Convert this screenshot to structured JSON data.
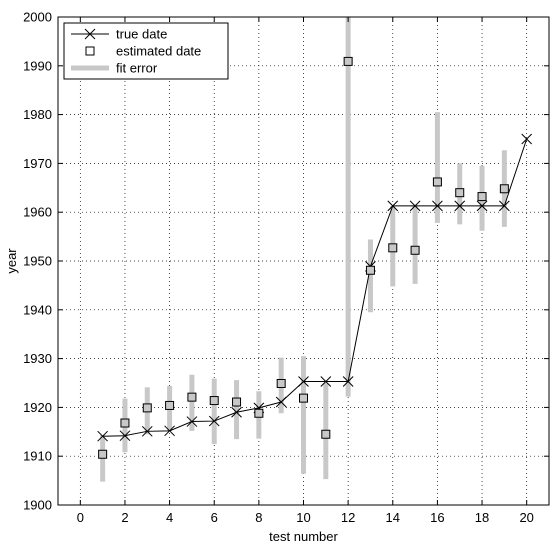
{
  "chart_data": {
    "type": "scatter",
    "xlabel": "test number",
    "ylabel": "year",
    "xlim": [
      -1,
      21
    ],
    "ylim": [
      1900,
      2000
    ],
    "xticks": [
      0,
      2,
      4,
      6,
      8,
      10,
      12,
      14,
      16,
      18,
      20
    ],
    "yticks": [
      1900,
      1910,
      1920,
      1930,
      1940,
      1950,
      1960,
      1970,
      1980,
      1990,
      2000
    ],
    "grid": true,
    "legend_position": "top-left",
    "legend": [
      "true date",
      "estimated date",
      "fit error"
    ],
    "colors": {
      "line": "#000000",
      "error_bar": "#c8c8c8",
      "marker_face": "#c8c8c8",
      "grid": "#000000"
    },
    "series": [
      {
        "name": "true date",
        "style": "line-with-x-markers",
        "x": [
          1,
          2,
          3,
          4,
          5,
          6,
          7,
          8,
          9,
          10,
          11,
          12,
          13,
          14,
          15,
          16,
          17,
          18,
          19,
          20
        ],
        "y": [
          1914.1,
          1914.2,
          1915.1,
          1915.2,
          1917.1,
          1917.2,
          1919.0,
          1919.9,
          1921.1,
          1925.3,
          1925.3,
          1925.3,
          1948.9,
          1961.3,
          1961.3,
          1961.3,
          1961.3,
          1961.3,
          1961.3,
          1975.0
        ]
      },
      {
        "name": "estimated date",
        "style": "square-markers",
        "x": [
          1,
          2,
          3,
          4,
          5,
          6,
          7,
          8,
          9,
          10,
          11,
          12,
          13,
          14,
          15,
          16,
          17,
          18,
          19
        ],
        "y": [
          1910.4,
          1916.8,
          1919.9,
          1920.4,
          1922.1,
          1921.4,
          1921.1,
          1918.8,
          1924.9,
          1921.9,
          1914.5,
          1990.9,
          1948.1,
          1952.7,
          1952.2,
          1966.2,
          1964.0,
          1963.2,
          1964.8
        ]
      },
      {
        "name": "fit error",
        "style": "vertical-bars",
        "x": [
          1,
          2,
          3,
          4,
          5,
          6,
          7,
          8,
          9,
          10,
          11,
          12,
          13,
          14,
          15,
          16,
          17,
          18,
          19
        ],
        "low": [
          1904.8,
          1910.8,
          1914.5,
          1915.2,
          1915.2,
          1912.5,
          1913.5,
          1913.6,
          1918.8,
          1906.4,
          1905.3,
          1922.2,
          1939.5,
          1944.8,
          1945.3,
          1957.8,
          1957.5,
          1956.2,
          1957.0
        ],
        "high": [
          1914.3,
          1921.8,
          1924.1,
          1924.4,
          1926.7,
          1925.9,
          1925.6,
          1923.3,
          1930.2,
          1930.5,
          1925.0,
          2000.0,
          1954.4,
          1961.3,
          1961.3,
          1980.5,
          1970.0,
          1969.5,
          1972.7
        ]
      }
    ]
  }
}
